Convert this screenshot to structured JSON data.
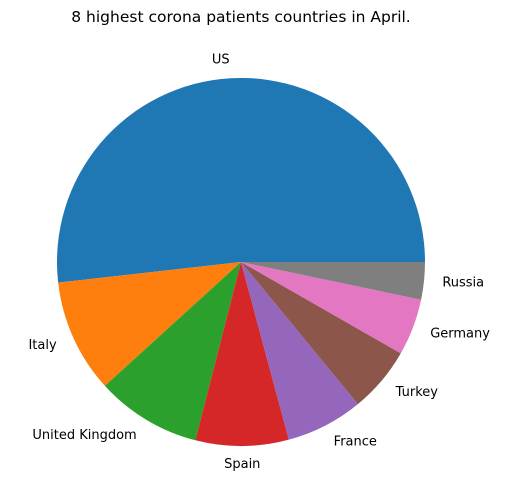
{
  "chart_data": {
    "type": "pie",
    "title": "8 highest corona patients countries in April.",
    "categories": [
      "US",
      "Italy",
      "United Kingdom",
      "Spain",
      "France",
      "Turkey",
      "Germany",
      "Russia"
    ],
    "values": [
      52.0,
      10.0,
      9.3,
      8.2,
      6.8,
      5.8,
      5.0,
      3.3
    ],
    "colors": [
      "#1f77b4",
      "#ff7f0e",
      "#2ca02c",
      "#d62728",
      "#9467bd",
      "#8c564b",
      "#e377c2",
      "#7f7f7f"
    ],
    "start_angle": 0,
    "direction": "counterclockwise",
    "legend": "none",
    "labels": "outside"
  }
}
